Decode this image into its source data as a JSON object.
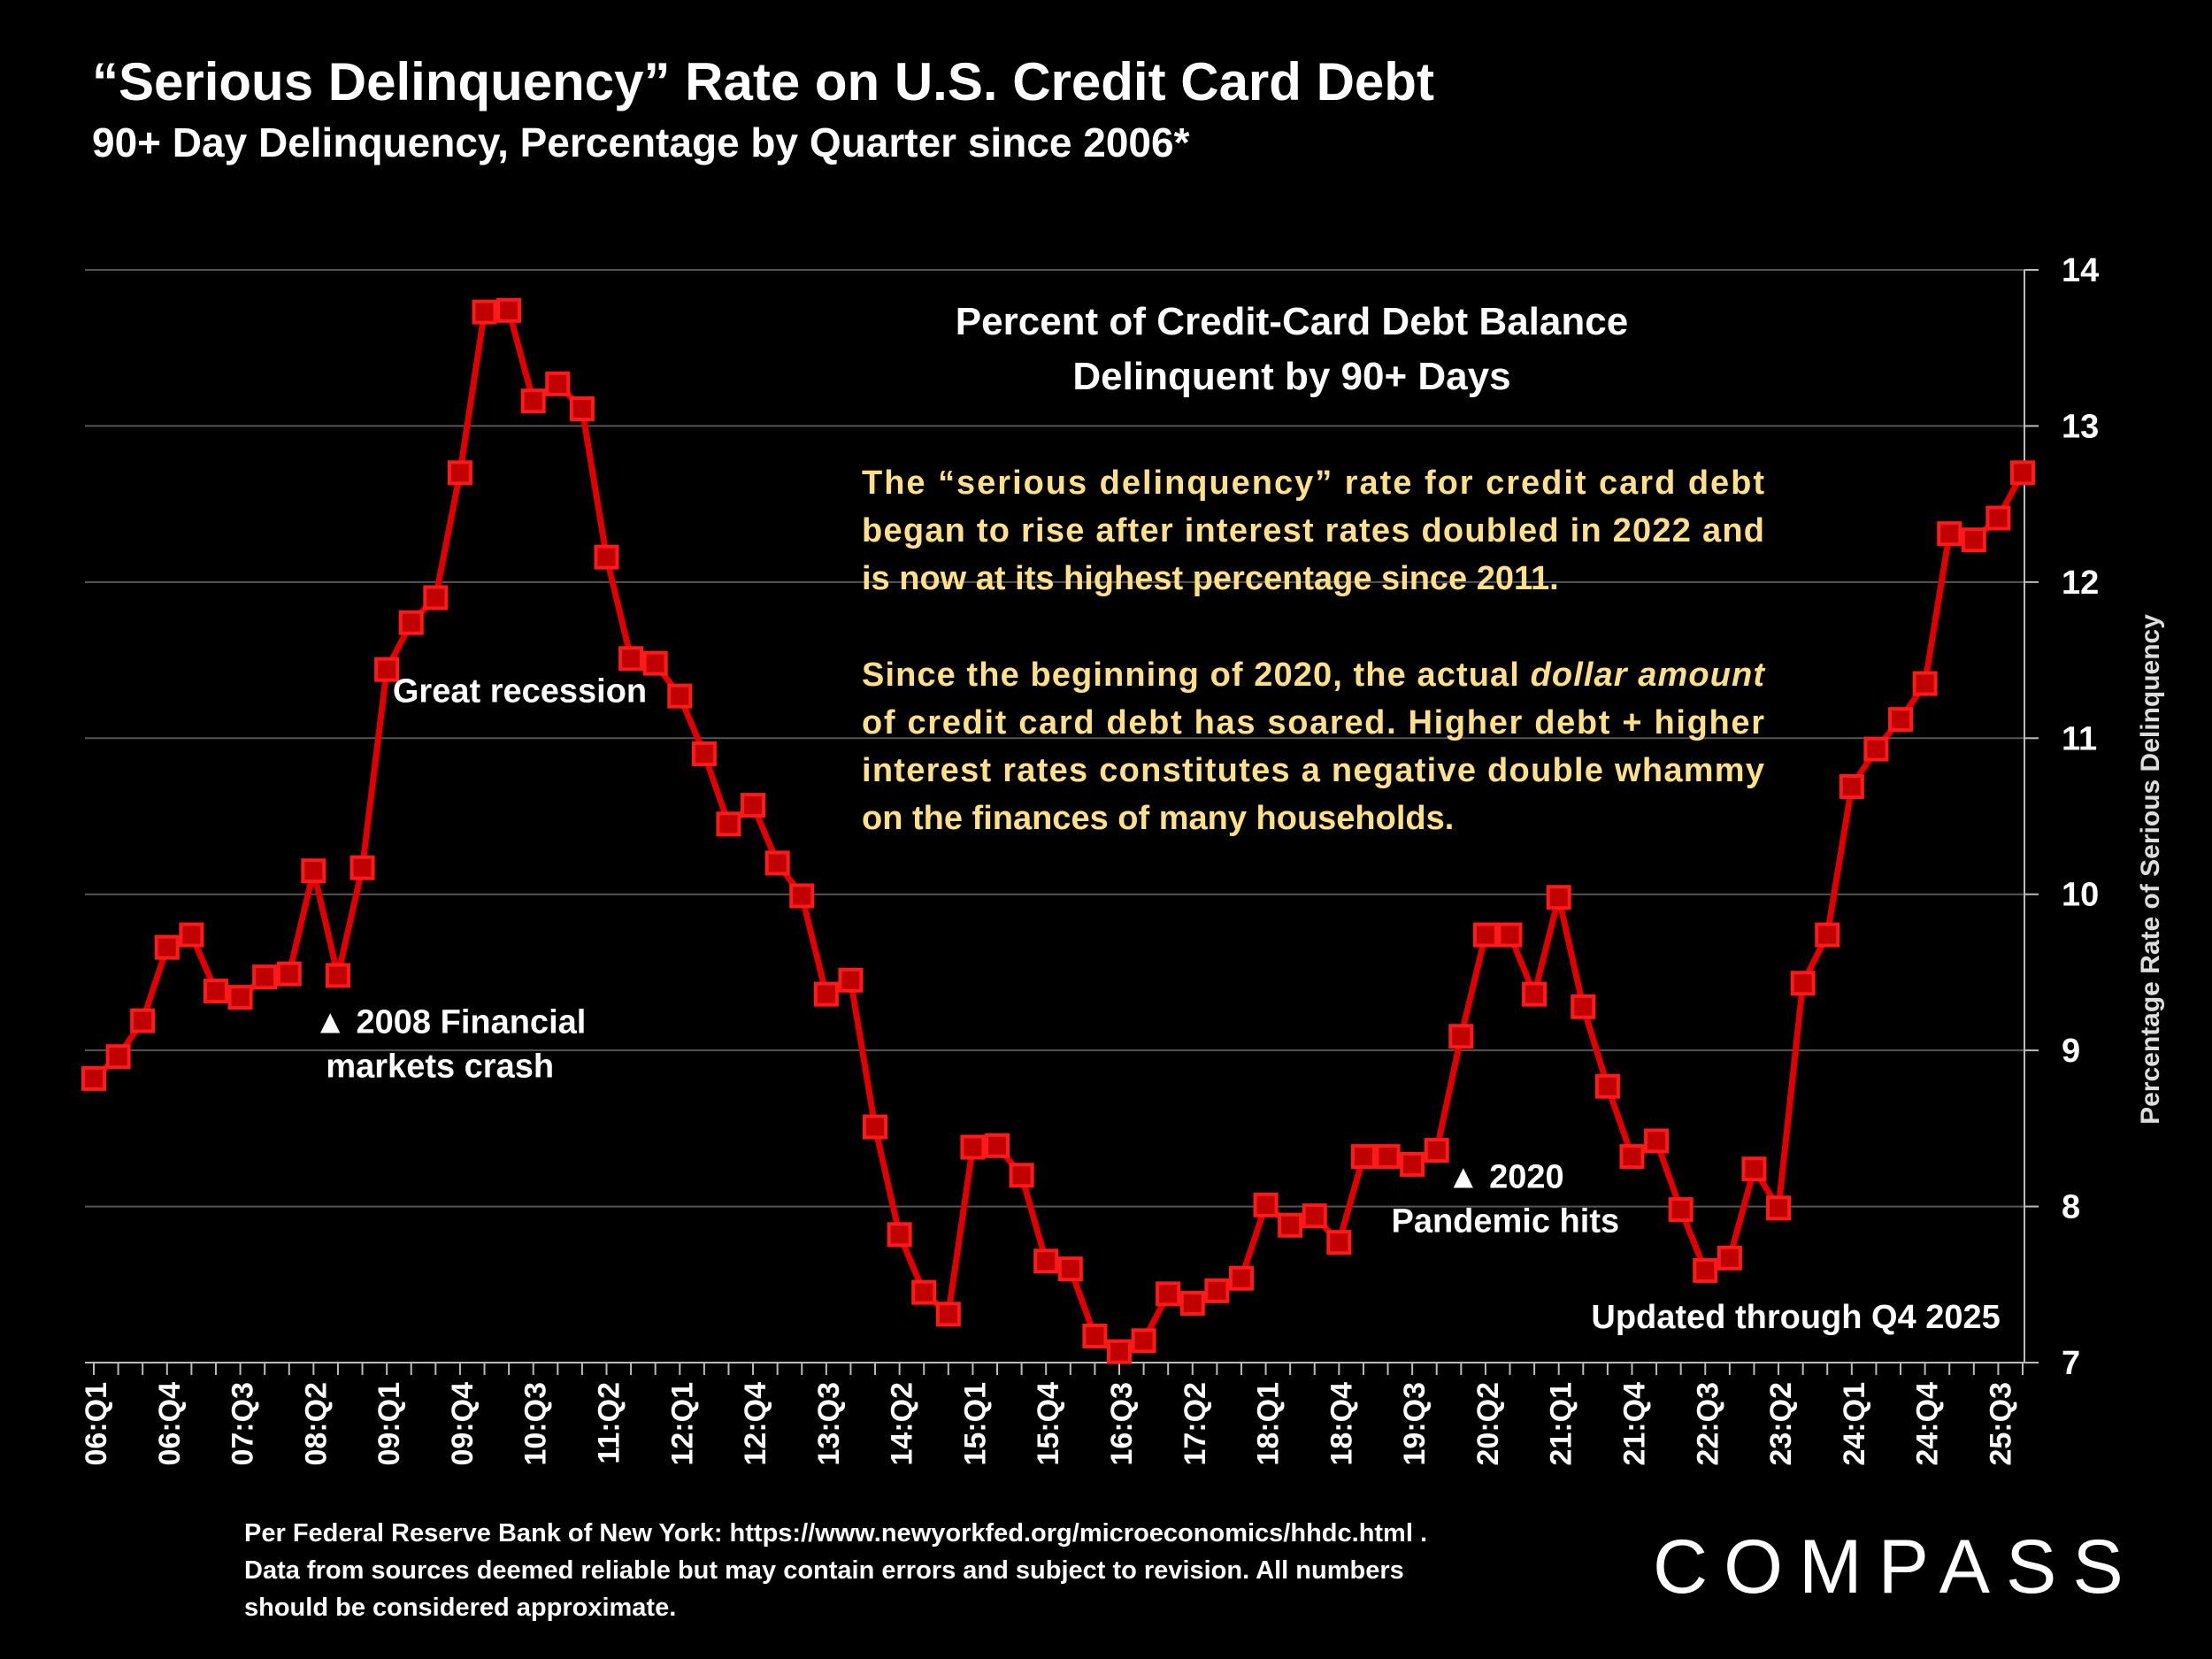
{
  "header": {
    "title": "“Serious Delinquency” Rate on U.S. Credit Card Debt",
    "subtitle": "90+ Day Delinquency, Percentage by Quarter since 2006*"
  },
  "colors": {
    "background": "#000000",
    "series": "#E00000",
    "marker_fill": "#C00000",
    "note_text": "#FFE08A",
    "grid": "#555555"
  },
  "chart_data": {
    "type": "line",
    "title": "Percent of Credit-Card Debt Balance Delinquent by 90+ Days",
    "title_lines": [
      "Percent of Credit-Card Debt Balance",
      "Delinquent by 90+ Days"
    ],
    "xlabel": "",
    "ylabel": "Percentage Rate of Serious Delinquency",
    "ylim": [
      7,
      14
    ],
    "yticks": [
      7,
      8,
      9,
      10,
      11,
      12,
      13,
      14
    ],
    "y_axis_side": "right",
    "grid": true,
    "x_tick_labels": [
      "06:Q1",
      "06:Q4",
      "07:Q3",
      "08:Q2",
      "09:Q1",
      "09:Q4",
      "10:Q3",
      "11:Q2",
      "12:Q1",
      "12:Q4",
      "13:Q3",
      "14:Q2",
      "15:Q1",
      "15:Q4",
      "16:Q3",
      "17:Q2",
      "18:Q1",
      "18:Q4",
      "19:Q3",
      "20:Q2",
      "21:Q1",
      "21:Q4",
      "22:Q3",
      "23:Q2",
      "24:Q1",
      "24:Q4",
      "25:Q3"
    ],
    "x": [
      "06:Q1",
      "06:Q2",
      "06:Q3",
      "06:Q4",
      "07:Q1",
      "07:Q2",
      "07:Q3",
      "07:Q4",
      "08:Q1",
      "08:Q2",
      "08:Q3",
      "08:Q4",
      "09:Q1",
      "09:Q2",
      "09:Q3",
      "09:Q4",
      "10:Q1",
      "10:Q2",
      "10:Q3",
      "10:Q4",
      "11:Q1",
      "11:Q2",
      "11:Q3",
      "11:Q4",
      "12:Q1",
      "12:Q2",
      "12:Q3",
      "12:Q4",
      "13:Q1",
      "13:Q2",
      "13:Q3",
      "13:Q4",
      "14:Q1",
      "14:Q2",
      "14:Q3",
      "14:Q4",
      "15:Q1",
      "15:Q2",
      "15:Q3",
      "15:Q4",
      "16:Q1",
      "16:Q2",
      "16:Q3",
      "16:Q4",
      "17:Q1",
      "17:Q2",
      "17:Q3",
      "17:Q4",
      "18:Q1",
      "18:Q2",
      "18:Q3",
      "18:Q4",
      "19:Q1",
      "19:Q2",
      "19:Q3",
      "19:Q4",
      "20:Q1",
      "20:Q2",
      "20:Q3",
      "20:Q4",
      "21:Q1",
      "21:Q2",
      "21:Q3",
      "21:Q4",
      "22:Q1",
      "22:Q2",
      "22:Q3",
      "22:Q4",
      "23:Q1",
      "23:Q2",
      "23:Q3",
      "23:Q4",
      "24:Q1",
      "24:Q2",
      "24:Q3",
      "24:Q4",
      "25:Q1",
      "25:Q2",
      "25:Q3",
      "25:Q4"
    ],
    "series": [
      {
        "values": [
          8.82,
          8.96,
          9.19,
          9.66,
          9.74,
          9.38,
          9.34,
          9.47,
          9.49,
          10.15,
          9.48,
          10.17,
          11.44,
          11.74,
          11.9,
          12.7,
          13.73,
          13.74,
          13.16,
          13.27,
          13.11,
          12.16,
          11.51,
          11.48,
          11.27,
          10.9,
          10.45,
          10.57,
          10.2,
          9.99,
          9.36,
          9.45,
          8.51,
          7.82,
          7.45,
          7.31,
          8.38,
          8.39,
          8.2,
          7.65,
          7.6,
          7.17,
          7.07,
          7.14,
          7.44,
          7.38,
          7.46,
          7.54,
          8.01,
          7.88,
          7.94,
          7.77,
          8.32,
          8.32,
          8.27,
          8.36,
          9.09,
          9.74,
          9.74,
          9.36,
          9.98,
          9.28,
          8.77,
          8.32,
          8.42,
          7.98,
          7.59,
          7.67,
          8.24,
          7.99,
          9.43,
          9.74,
          10.69,
          10.93,
          11.12,
          11.35,
          12.31,
          12.27,
          12.41,
          12.7
        ]
      }
    ],
    "annotations": [
      {
        "text": "Great recession",
        "x": "10:Q1",
        "y": 11.23
      },
      {
        "text": "▲ 2008 Financial",
        "text2": "markets crash",
        "x": "08:Q2",
        "y": 9.11
      },
      {
        "text": "▲ 2020",
        "text2": "Pandemic hits",
        "x": "20:Q1",
        "y": 8.12
      },
      {
        "text": "Updated through Q4 2025",
        "x": "25:Q2",
        "y": 7.22
      }
    ],
    "note_paragraphs": [
      [
        "The “serious delinquency” rate for credit card debt",
        "began to rise after interest rates doubled in 2022 and",
        "is now at its highest percentage since 2011."
      ],
      [
        "Since the beginning of 2020, the actual ",
        "dollar amount",
        "of credit card debt has soared. Higher debt + higher",
        "interest rates constitutes a negative double whammy",
        "on the finances of many households."
      ]
    ]
  },
  "footnote": {
    "line1": "Per Federal Reserve Bank of New York: https://www.newyorkfed.org/microeconomics/hhdc.html .",
    "line2": "Data from sources deemed reliable but may contain errors and subject to revision. All numbers",
    "line3": "should be considered approximate."
  },
  "logo": {
    "text": "COMPASS"
  }
}
